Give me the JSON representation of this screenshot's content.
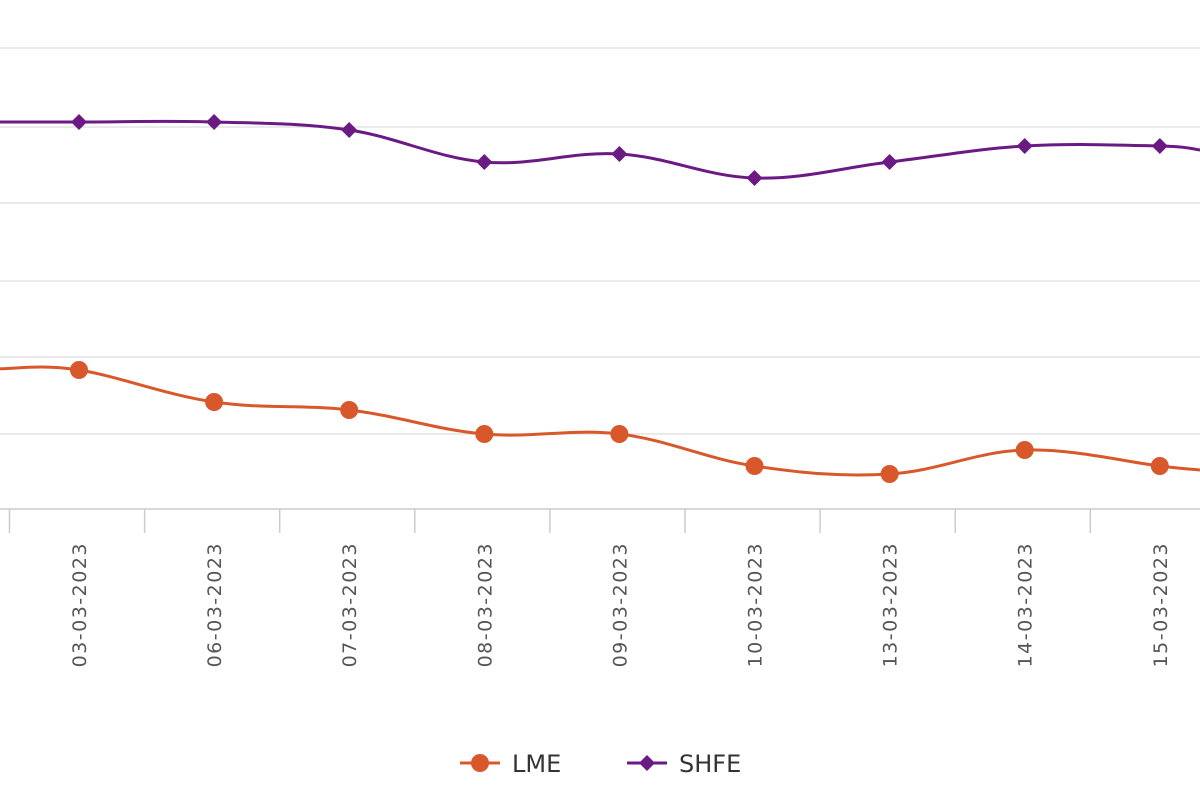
{
  "chart_data": {
    "type": "line",
    "title": "",
    "xlabel": "",
    "ylabel": "",
    "categories": [
      "03-03-2023",
      "06-03-2023",
      "07-03-2023",
      "08-03-2023",
      "09-03-2023",
      "10-03-2023",
      "13-03-2023",
      "14-03-2023",
      "15-03-2023"
    ],
    "series": [
      {
        "name": "LME",
        "color": "#d9582b",
        "marker": "circle",
        "values": [
          3.0,
          2.6,
          2.5,
          2.2,
          2.2,
          1.8,
          1.7,
          2.0,
          1.8
        ]
      },
      {
        "name": "SHFE",
        "color": "#6b1a83",
        "marker": "diamond",
        "values": [
          6.1,
          6.1,
          6.0,
          5.6,
          5.7,
          5.4,
          5.6,
          5.8,
          5.8
        ]
      }
    ],
    "grid": true,
    "legend": "bottom-center"
  }
}
